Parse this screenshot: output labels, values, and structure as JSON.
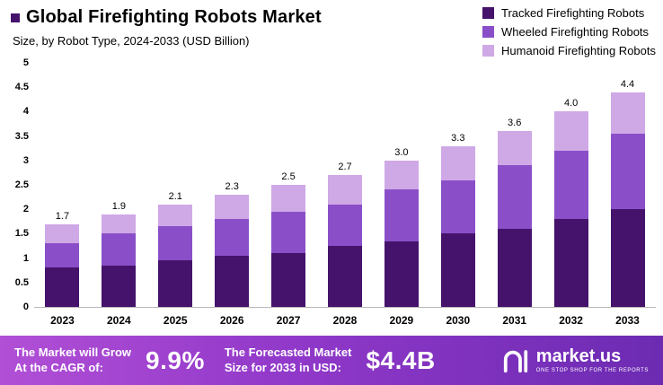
{
  "header": {
    "title": "Global Firefighting Robots Market",
    "subtitle": "Size, by Robot Type, 2024-2033 (USD Billion)"
  },
  "legend": {
    "items": [
      {
        "label": "Tracked Firefighting Robots",
        "color": "#45136b"
      },
      {
        "label": "Wheeled Firefighting Robots",
        "color": "#8a4fc8"
      },
      {
        "label": "Humanoid Firefighting Robots",
        "color": "#cfa8e6"
      }
    ]
  },
  "chart_data": {
    "type": "bar",
    "stacked": true,
    "title": "Global Firefighting Robots Market",
    "subtitle": "Size, by Robot Type, 2024-2033 (USD Billion)",
    "xlabel": "",
    "ylabel": "",
    "ylim": [
      0,
      5
    ],
    "ytick_labels": [
      "0",
      "0.5",
      "1",
      "1.5",
      "2",
      "2.5",
      "3",
      "3.5",
      "4",
      "4.5",
      "5"
    ],
    "categories": [
      "2023",
      "2024",
      "2025",
      "2026",
      "2027",
      "2028",
      "2029",
      "2030",
      "2031",
      "2032",
      "2033"
    ],
    "series": [
      {
        "name": "Tracked Firefighting Robots",
        "color": "#45136b",
        "values": [
          0.8,
          0.85,
          0.95,
          1.05,
          1.1,
          1.25,
          1.35,
          1.5,
          1.6,
          1.8,
          2.0
        ]
      },
      {
        "name": "Wheeled Firefighting Robots",
        "color": "#8a4fc8",
        "values": [
          0.5,
          0.65,
          0.7,
          0.75,
          0.85,
          0.85,
          1.05,
          1.1,
          1.3,
          1.4,
          1.55
        ]
      },
      {
        "name": "Humanoid Firefighting Robots",
        "color": "#cfa8e6",
        "values": [
          0.4,
          0.4,
          0.45,
          0.5,
          0.55,
          0.6,
          0.6,
          0.7,
          0.7,
          0.8,
          0.85
        ]
      }
    ],
    "totals": [
      "1.7",
      "1.9",
      "2.1",
      "2.3",
      "2.5",
      "2.7",
      "3.0",
      "3.3",
      "3.6",
      "4.0",
      "4.4"
    ],
    "legend_position": "top-right",
    "grid": false
  },
  "footer": {
    "cagr_label_line1": "The Market will Grow",
    "cagr_label_line2": "At the CAGR of:",
    "cagr_value": "9.9%",
    "forecast_label_line1": "The Forecasted Market",
    "forecast_label_line2": "Size for 2033 in USD:",
    "forecast_value": "$4.4B",
    "brand": "market.us",
    "tagline": "ONE STOP SHOP FOR THE REPORTS"
  }
}
